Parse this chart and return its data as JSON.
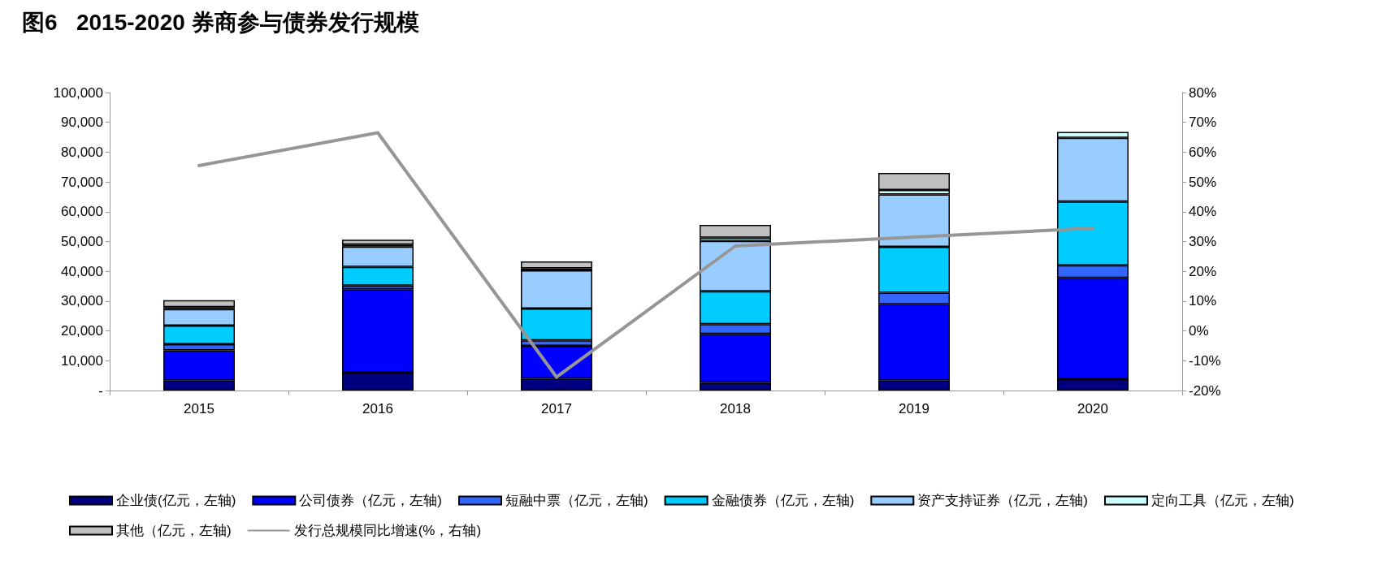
{
  "chart_data": {
    "type": "bar",
    "title": "图6   2015-2020 券商参与债券发行规模",
    "categories": [
      "2015",
      "2016",
      "2017",
      "2018",
      "2019",
      "2020"
    ],
    "stacked": true,
    "grid": false,
    "legend": "bottom",
    "marker": "none",
    "line_style": "solid",
    "ylim": [
      0,
      100000
    ],
    "yticks": [
      {
        "value": 0,
        "label": "-"
      },
      {
        "value": 10000,
        "label": "10,000"
      },
      {
        "value": 20000,
        "label": "20,000"
      },
      {
        "value": 30000,
        "label": "30,000"
      },
      {
        "value": 40000,
        "label": "40,000"
      },
      {
        "value": 50000,
        "label": "50,000"
      },
      {
        "value": 60000,
        "label": "60,000"
      },
      {
        "value": 70000,
        "label": "70,000"
      },
      {
        "value": 80000,
        "label": "80,000"
      },
      {
        "value": 90000,
        "label": "90,000"
      },
      {
        "value": 100000,
        "label": "100,000"
      }
    ],
    "y2lim": [
      -20,
      80
    ],
    "y2ticks": [
      {
        "value": -20,
        "label": "-20%"
      },
      {
        "value": -10,
        "label": "-10%"
      },
      {
        "value": 0,
        "label": "0%"
      },
      {
        "value": 10,
        "label": "10%"
      },
      {
        "value": 20,
        "label": "20%"
      },
      {
        "value": 30,
        "label": "30%"
      },
      {
        "value": 40,
        "label": "40%"
      },
      {
        "value": 50,
        "label": "50%"
      },
      {
        "value": 60,
        "label": "60%"
      },
      {
        "value": 70,
        "label": "70%"
      },
      {
        "value": 80,
        "label": "80%"
      }
    ],
    "series": [
      {
        "name": "企业债(亿元，左轴)",
        "color": "#000080",
        "values": [
          3500,
          6000,
          4000,
          2500,
          3500,
          3800
        ]
      },
      {
        "name": "公司债券（亿元，左轴)",
        "color": "#0000ff",
        "values": [
          10000,
          28000,
          11000,
          16500,
          25500,
          34000
        ]
      },
      {
        "name": "短融中票（亿元，左轴)",
        "color": "#3366ff",
        "values": [
          2000,
          1200,
          1800,
          3300,
          3800,
          4200
        ]
      },
      {
        "name": "金融债券（亿元，左轴)",
        "color": "#00ccff",
        "values": [
          6300,
          6300,
          10700,
          11000,
          15400,
          21400
        ]
      },
      {
        "name": "资产支持证券（亿元，左轴)",
        "color": "#99ccff",
        "values": [
          5500,
          6800,
          12800,
          16900,
          17600,
          21400
        ]
      },
      {
        "name": "定向工具（亿元，左轴)",
        "color": "#ccffff",
        "values": [
          700,
          700,
          700,
          1100,
          1500,
          2000
        ]
      },
      {
        "name": "其他（亿元，左轴)",
        "color": "#c0c0c0",
        "values": [
          2300,
          1600,
          2300,
          4300,
          5700,
          null
        ]
      },
      {
        "name": "发行总规模同比增速(%，右轴)",
        "type": "line",
        "axis": "y2",
        "color": "#969696",
        "values": [
          55.5,
          66.5,
          -15.5,
          28.5,
          31.5,
          34.5
        ]
      }
    ]
  }
}
